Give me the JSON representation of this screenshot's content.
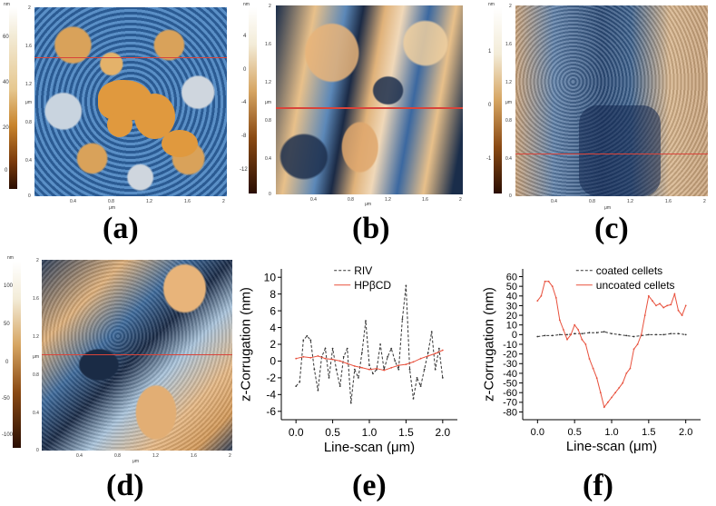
{
  "panels": {
    "a": {
      "label": "(a)",
      "unit": "nm",
      "cbar_ticks": [
        "60",
        "40",
        "20",
        "0"
      ],
      "y_unit": "μm",
      "x_unit": "μm",
      "y_ticks": [
        "1.6",
        "1.2",
        "0.8",
        "0.4",
        "0"
      ],
      "x_ticks": [
        "0",
        "0.4",
        "0.8",
        "1.2",
        "1.6",
        "2"
      ],
      "top_tick": "2"
    },
    "b": {
      "label": "(b)",
      "unit": "nm",
      "cbar_ticks": [
        "4",
        "0",
        "-4",
        "-8",
        "-12"
      ],
      "y_unit": "μm",
      "x_unit": "μm",
      "y_ticks": [
        "1.6",
        "1.2",
        "0.8",
        "0.4",
        "0"
      ],
      "x_ticks": [
        "0",
        "0.4",
        "0.8",
        "1.2",
        "1.6",
        "2"
      ],
      "top_tick": "2"
    },
    "c": {
      "label": "(c)",
      "unit": "nm",
      "cbar_ticks": [
        "1",
        "0",
        "-1"
      ],
      "y_unit": "μm",
      "x_unit": "μm",
      "y_ticks": [
        "1.6",
        "1.2",
        "0.8",
        "0.4",
        "0"
      ],
      "x_ticks": [
        "0",
        "0.4",
        "0.8",
        "1.2",
        "1.6",
        "2"
      ],
      "top_tick": "2"
    },
    "d": {
      "label": "(d)",
      "unit": "nm",
      "cbar_ticks": [
        "100",
        "50",
        "0",
        "-50",
        "-100"
      ],
      "y_unit": "μm",
      "x_unit": "μm",
      "y_ticks": [
        "1.6",
        "1.2",
        "0.8",
        "0.4",
        "0"
      ],
      "x_ticks": [
        "0",
        "0.4",
        "0.8",
        "1.2",
        "1.6",
        "2"
      ],
      "top_tick": "2"
    },
    "e": {
      "label": "(e)"
    },
    "f": {
      "label": "(f)"
    }
  },
  "chart_data": [
    {
      "type": "line",
      "xlabel": "Line-scan (μm)",
      "ylabel": "z-Corrugation (nm)",
      "xlim": [
        -0.2,
        2.2
      ],
      "ylim": [
        -7,
        11
      ],
      "xticks": [
        0.0,
        0.5,
        1.0,
        1.5,
        2.0
      ],
      "xtick_labels": [
        "0.0",
        "0.5",
        "1.0",
        "1.5",
        "2.0"
      ],
      "yticks": [
        -6,
        -4,
        -2,
        0,
        2,
        4,
        6,
        8,
        10
      ],
      "ytick_labels": [
        "-6",
        "-4",
        "-2",
        "0",
        "2",
        "4",
        "6",
        "8",
        "10"
      ],
      "legend_position": "top-center",
      "series": [
        {
          "name": "RIV",
          "color": "#333333",
          "dash": "3,2",
          "x": [
            0.0,
            0.05,
            0.1,
            0.15,
            0.2,
            0.25,
            0.3,
            0.35,
            0.4,
            0.45,
            0.5,
            0.55,
            0.6,
            0.65,
            0.7,
            0.75,
            0.8,
            0.85,
            0.9,
            0.95,
            1.0,
            1.05,
            1.1,
            1.15,
            1.2,
            1.25,
            1.3,
            1.35,
            1.4,
            1.45,
            1.5,
            1.55,
            1.6,
            1.65,
            1.7,
            1.75,
            1.8,
            1.85,
            1.9,
            1.95,
            2.0
          ],
          "y": [
            -3.0,
            -2.5,
            2.5,
            3.0,
            2.5,
            -1.0,
            -3.5,
            0.5,
            1.5,
            -2.0,
            1.5,
            -1.0,
            -3.0,
            0.5,
            1.5,
            -5.0,
            -1.0,
            -2.0,
            1.0,
            4.8,
            -0.5,
            -1.5,
            -1.0,
            2.0,
            -1.0,
            0.5,
            1.5,
            0.0,
            -1.0,
            5.0,
            9.0,
            -1.0,
            -4.5,
            -2.0,
            -3.0,
            -1.0,
            1.0,
            3.5,
            -1.0,
            1.5,
            -2.0
          ]
        },
        {
          "name": "HPβCD",
          "color": "#e8503c",
          "dash": "",
          "x": [
            0.0,
            0.1,
            0.2,
            0.3,
            0.4,
            0.5,
            0.6,
            0.7,
            0.8,
            0.9,
            1.0,
            1.1,
            1.2,
            1.3,
            1.4,
            1.5,
            1.6,
            1.7,
            1.8,
            1.9,
            2.0
          ],
          "y": [
            0.3,
            0.5,
            0.4,
            0.6,
            0.3,
            0.2,
            0.0,
            -0.3,
            -0.6,
            -0.8,
            -1.0,
            -0.9,
            -1.1,
            -0.8,
            -0.5,
            -0.4,
            -0.1,
            0.3,
            0.6,
            0.9,
            1.3
          ]
        }
      ]
    },
    {
      "type": "line",
      "xlabel": "Line-scan (μm)",
      "ylabel": "z-Corrugation (nm)",
      "xlim": [
        -0.2,
        2.2
      ],
      "ylim": [
        -88,
        68
      ],
      "xticks": [
        0.0,
        0.5,
        1.0,
        1.5,
        2.0
      ],
      "xtick_labels": [
        "0.0",
        "0.5",
        "1.0",
        "1.5",
        "2.0"
      ],
      "yticks": [
        -80,
        -70,
        -60,
        -50,
        -40,
        -30,
        -20,
        -10,
        0,
        10,
        20,
        30,
        40,
        50,
        60
      ],
      "ytick_labels": [
        "-80",
        "-70",
        "-60",
        "-50",
        "-40",
        "-30",
        "-20",
        "-10",
        "0",
        "10",
        "20",
        "30",
        "40",
        "50",
        "60"
      ],
      "legend_position": "top-center",
      "series": [
        {
          "name": "coated cellets",
          "color": "#333333",
          "dash": "3,2",
          "x": [
            0.0,
            0.1,
            0.2,
            0.3,
            0.4,
            0.5,
            0.6,
            0.7,
            0.8,
            0.9,
            1.0,
            1.1,
            1.2,
            1.3,
            1.4,
            1.5,
            1.6,
            1.7,
            1.8,
            1.9,
            2.0
          ],
          "y": [
            -2,
            -1,
            -1,
            0,
            0,
            1,
            1,
            2,
            2,
            3,
            1,
            0,
            -1,
            -2,
            -1,
            0,
            0,
            0,
            1,
            1,
            0
          ]
        },
        {
          "name": "uncoated cellets",
          "color": "#e8503c",
          "dash": "",
          "x": [
            0.0,
            0.05,
            0.1,
            0.15,
            0.2,
            0.25,
            0.3,
            0.35,
            0.4,
            0.45,
            0.5,
            0.55,
            0.6,
            0.65,
            0.7,
            0.75,
            0.8,
            0.85,
            0.9,
            0.95,
            1.0,
            1.05,
            1.1,
            1.15,
            1.2,
            1.25,
            1.3,
            1.35,
            1.4,
            1.45,
            1.5,
            1.55,
            1.6,
            1.65,
            1.7,
            1.75,
            1.8,
            1.85,
            1.9,
            1.95,
            2.0
          ],
          "y": [
            35,
            40,
            55,
            55,
            50,
            38,
            15,
            5,
            -5,
            0,
            10,
            5,
            -5,
            -10,
            -25,
            -35,
            -45,
            -60,
            -75,
            -70,
            -65,
            -60,
            -55,
            -50,
            -40,
            -35,
            -15,
            -10,
            0,
            20,
            40,
            35,
            30,
            32,
            28,
            30,
            31,
            42,
            25,
            20,
            30
          ]
        }
      ]
    }
  ]
}
